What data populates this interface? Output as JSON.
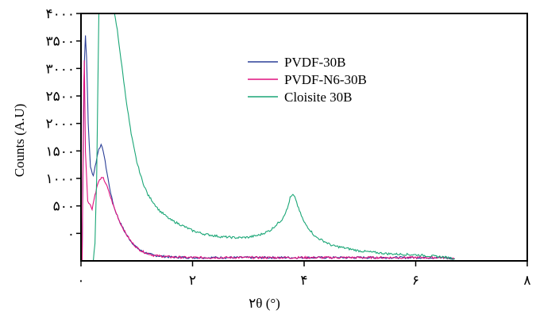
{
  "chart_data": {
    "type": "line",
    "title": "",
    "xlabel": "۲θ (°)",
    "ylabel": "Counts (A.U)",
    "xlim": [
      0,
      8
    ],
    "ylim": [
      -500,
      4000
    ],
    "x_ticks": [
      {
        "value": 0,
        "label": "۰"
      },
      {
        "value": 2,
        "label": "۲"
      },
      {
        "value": 4,
        "label": "۴"
      },
      {
        "value": 6,
        "label": "۶"
      },
      {
        "value": 8,
        "label": "۸"
      }
    ],
    "y_ticks": [
      {
        "value": 0,
        "label": "۰"
      },
      {
        "value": 500,
        "label": "۵۰۰"
      },
      {
        "value": 1000,
        "label": "۱۰۰۰"
      },
      {
        "value": 1500,
        "label": "۱۵۰۰"
      },
      {
        "value": 2000,
        "label": "۲۰۰۰"
      },
      {
        "value": 2500,
        "label": "۲۵۰۰"
      },
      {
        "value": 3000,
        "label": "۳۰۰۰"
      },
      {
        "value": 3500,
        "label": "۳۵۰۰"
      },
      {
        "value": 4000,
        "label": "۴۰۰۰"
      }
    ],
    "grid": false,
    "legend_position": "top-right",
    "series": [
      {
        "name": "PVDF-30B",
        "color": "#2b3f97",
        "points": [
          [
            0.02,
            -500
          ],
          [
            0.04,
            1500
          ],
          [
            0.06,
            3100
          ],
          [
            0.08,
            3600
          ],
          [
            0.1,
            3200
          ],
          [
            0.13,
            2000
          ],
          [
            0.17,
            1200
          ],
          [
            0.22,
            1050
          ],
          [
            0.27,
            1300
          ],
          [
            0.32,
            1550
          ],
          [
            0.36,
            1600
          ],
          [
            0.4,
            1500
          ],
          [
            0.45,
            1200
          ],
          [
            0.5,
            900
          ],
          [
            0.55,
            650
          ],
          [
            0.6,
            450
          ],
          [
            0.7,
            200
          ],
          [
            0.8,
            0
          ],
          [
            0.9,
            -150
          ],
          [
            1.0,
            -260
          ],
          [
            1.1,
            -330
          ],
          [
            1.3,
            -400
          ],
          [
            1.6,
            -430
          ],
          [
            2.0,
            -440
          ],
          [
            3.0,
            -440
          ],
          [
            4.0,
            -440
          ],
          [
            5.0,
            -440
          ],
          [
            6.0,
            -440
          ],
          [
            6.5,
            -440
          ],
          [
            6.7,
            -460
          ]
        ]
      },
      {
        "name": "PVDF-N6-30B",
        "color": "#e0107f",
        "points": [
          [
            0.02,
            -500
          ],
          [
            0.03,
            800
          ],
          [
            0.05,
            2700
          ],
          [
            0.06,
            3150
          ],
          [
            0.08,
            1500
          ],
          [
            0.12,
            600
          ],
          [
            0.2,
            450
          ],
          [
            0.25,
            700
          ],
          [
            0.3,
            900
          ],
          [
            0.35,
            1000
          ],
          [
            0.4,
            1000
          ],
          [
            0.45,
            900
          ],
          [
            0.5,
            750
          ],
          [
            0.55,
            600
          ],
          [
            0.6,
            450
          ],
          [
            0.7,
            200
          ],
          [
            0.8,
            0
          ],
          [
            0.9,
            -150
          ],
          [
            1.0,
            -260
          ],
          [
            1.1,
            -330
          ],
          [
            1.3,
            -400
          ],
          [
            1.6,
            -430
          ],
          [
            2.0,
            -440
          ],
          [
            3.0,
            -440
          ],
          [
            4.0,
            -440
          ],
          [
            5.0,
            -440
          ],
          [
            6.0,
            -440
          ],
          [
            6.5,
            -440
          ],
          [
            6.7,
            -460
          ]
        ]
      },
      {
        "name": "Cloisite 30B",
        "color": "#1aa676",
        "points": [
          [
            0.22,
            -500
          ],
          [
            0.25,
            -200
          ],
          [
            0.28,
            1000
          ],
          [
            0.3,
            2500
          ],
          [
            0.32,
            4000
          ],
          [
            0.6,
            4000
          ],
          [
            0.65,
            3700
          ],
          [
            0.7,
            3300
          ],
          [
            0.8,
            2500
          ],
          [
            0.9,
            1800
          ],
          [
            1.0,
            1300
          ],
          [
            1.1,
            950
          ],
          [
            1.2,
            700
          ],
          [
            1.4,
            420
          ],
          [
            1.6,
            250
          ],
          [
            1.8,
            150
          ],
          [
            2.0,
            50
          ],
          [
            2.2,
            -10
          ],
          [
            2.5,
            -60
          ],
          [
            2.8,
            -80
          ],
          [
            3.0,
            -70
          ],
          [
            3.2,
            -30
          ],
          [
            3.4,
            60
          ],
          [
            3.6,
            250
          ],
          [
            3.7,
            450
          ],
          [
            3.75,
            650
          ],
          [
            3.8,
            700
          ],
          [
            3.85,
            620
          ],
          [
            3.9,
            450
          ],
          [
            4.0,
            200
          ],
          [
            4.2,
            -60
          ],
          [
            4.5,
            -220
          ],
          [
            5.0,
            -320
          ],
          [
            5.5,
            -370
          ],
          [
            6.0,
            -390
          ],
          [
            6.5,
            -430
          ],
          [
            6.7,
            -460
          ]
        ]
      }
    ]
  }
}
